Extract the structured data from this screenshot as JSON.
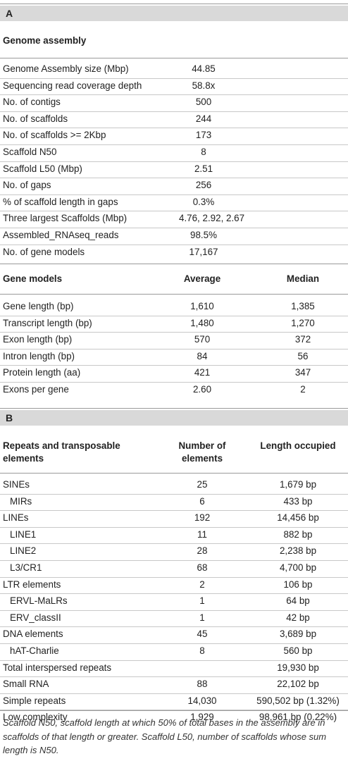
{
  "section_a": {
    "label": "A",
    "genome_heading": "Genome assembly",
    "genome_rows": [
      {
        "label": "Genome Assembly size (Mbp)",
        "value": "44.85"
      },
      {
        "label": "Sequencing read coverage depth",
        "value": "58.8x"
      },
      {
        "label": "No. of contigs",
        "value": "500"
      },
      {
        "label": "No. of scaffolds",
        "value": "244"
      },
      {
        "label": "No. of scaffolds >= 2Kbp",
        "value": "173"
      },
      {
        "label": "Scaffold N50",
        "value": "8"
      },
      {
        "label": "Scaffold L50 (Mbp)",
        "value": "2.51"
      },
      {
        "label": "No. of gaps",
        "value": "256"
      },
      {
        "label": "% of scaffold length in gaps",
        "value": "0.3%"
      },
      {
        "label": "Three largest Scaffolds (Mbp)",
        "value": "4.76, 2.92, 2.67"
      },
      {
        "label": "Assembled_RNAseq_reads",
        "value": "98.5%"
      },
      {
        "label": "No. of gene models",
        "value": "17,167"
      }
    ],
    "gene_models_header": {
      "label": "Gene models",
      "average": "Average",
      "median": "Median"
    },
    "gene_rows": [
      {
        "label": "Gene length (bp)",
        "average": "1,610",
        "median": "1,385"
      },
      {
        "label": "Transcript length (bp)",
        "average": "1,480",
        "median": "1,270"
      },
      {
        "label": "Exon length (bp)",
        "average": "570",
        "median": "372"
      },
      {
        "label": "Intron length (bp)",
        "average": "84",
        "median": "56"
      },
      {
        "label": "Protein length (aa)",
        "average": "421",
        "median": "347"
      },
      {
        "label": "Exons per gene",
        "average": "2.60",
        "median": "2"
      }
    ]
  },
  "section_b": {
    "label": "B",
    "header": {
      "label_line1": "Repeats and transposable",
      "label_line2": "elements",
      "number_line1": "Number of",
      "number_line2": "elements",
      "length": "Length occupied"
    },
    "rows": [
      {
        "label": "SINEs",
        "number": "25",
        "length": "1,679 bp",
        "indent": false
      },
      {
        "label": "MIRs",
        "number": "6",
        "length": "433 bp",
        "indent": true
      },
      {
        "label": "LINEs",
        "number": "192",
        "length": "14,456 bp",
        "indent": false
      },
      {
        "label": "LINE1",
        "number": "11",
        "length": "882 bp",
        "indent": true
      },
      {
        "label": "LINE2",
        "number": "28",
        "length": "2,238 bp",
        "indent": true
      },
      {
        "label": "L3/CR1",
        "number": "68",
        "length": "4,700 bp",
        "indent": true
      },
      {
        "label": "LTR elements",
        "number": "2",
        "length": "106 bp",
        "indent": false
      },
      {
        "label": "ERVL-MaLRs",
        "number": "1",
        "length": "64 bp",
        "indent": true
      },
      {
        "label": "ERV_classII",
        "number": "1",
        "length": "42 bp",
        "indent": true
      },
      {
        "label": "DNA elements",
        "number": "45",
        "length": "3,689 bp",
        "indent": false
      },
      {
        "label": "hAT-Charlie",
        "number": "8",
        "length": "560 bp",
        "indent": true
      },
      {
        "label": "Total interspersed repeats",
        "number": "",
        "length": "19,930 bp",
        "indent": false
      },
      {
        "label": "Small RNA",
        "number": "88",
        "length": "22,102 bp",
        "indent": false
      },
      {
        "label": "Simple repeats",
        "number": "14,030",
        "length": "590,502 bp (1.32%)",
        "indent": false
      },
      {
        "label": "Low complexity",
        "number": "1,929",
        "length": "98,961 bp (0.22%)",
        "indent": false
      }
    ]
  },
  "footnote": "Scaffold N50, scaffold length at which 50% of total bases in the assembly are in scaffolds of that length or greater. Scaffold L50, number of scaffolds whose sum length is N50."
}
